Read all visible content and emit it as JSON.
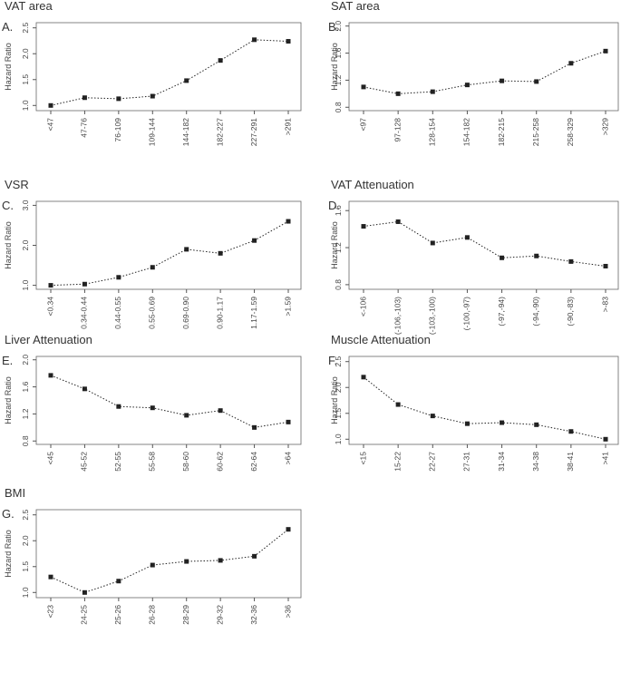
{
  "chart_data": [
    {
      "type": "line",
      "panel_label": "A.",
      "title": "VAT area",
      "ylabel": "Hazard Ratio",
      "categories": [
        "<47",
        "47-76",
        "76-109",
        "109-144",
        "144-182",
        "182-227",
        "227-291",
        ">291"
      ],
      "values": [
        1.0,
        1.15,
        1.13,
        1.18,
        1.48,
        1.87,
        2.27,
        2.24
      ],
      "ylim": [
        0.9,
        2.6
      ],
      "yticks": [
        {
          "value": 1,
          "label": "1.0"
        },
        1.5,
        {
          "value": 2,
          "label": "2.0"
        },
        2.5
      ],
      "color": "#222222"
    },
    {
      "type": "line",
      "panel_label": "B.",
      "title": "SAT area",
      "ylabel": "Hazard Ratio",
      "categories": [
        "<97",
        "97-128",
        "128-154",
        "154-182",
        "182-215",
        "215-258",
        "258-329",
        ">329"
      ],
      "values": [
        1.1,
        1.0,
        1.03,
        1.13,
        1.19,
        1.18,
        1.45,
        1.63
      ],
      "ylim": [
        0.75,
        2.05
      ],
      "yticks": [
        0.8,
        1.2,
        1.6,
        {
          "value": 2,
          "label": "2.0"
        }
      ],
      "color": "#222222"
    },
    {
      "type": "line",
      "panel_label": "C.",
      "title": "VSR",
      "ylabel": "Hazard Ratio",
      "categories": [
        "<0.34",
        "0.34-0.44",
        "0.44-0.55",
        "0.55-0.69",
        "0.69-0.90",
        "0.90-1.17",
        "1.17-1.59",
        ">1.59"
      ],
      "values": [
        1.0,
        1.03,
        1.2,
        1.45,
        1.9,
        1.8,
        2.12,
        2.6
      ],
      "ylim": [
        0.9,
        3.1
      ],
      "yticks": [
        {
          "value": 1,
          "label": "1.0"
        },
        {
          "value": 2,
          "label": "2.0"
        },
        {
          "value": 3,
          "label": "3.0"
        }
      ],
      "color": "#222222"
    },
    {
      "type": "line",
      "panel_label": "D.",
      "title": "VAT Attenuation",
      "ylabel": "Hazard Ratio",
      "categories": [
        "<-106",
        "(-106,-103)",
        "(-103,-100)",
        "(-100,-97)",
        "(-97,-94)",
        "(-94,-90)",
        "(-90,-83)",
        ">-83"
      ],
      "values": [
        1.43,
        1.48,
        1.25,
        1.31,
        1.09,
        1.11,
        1.05,
        1.0
      ],
      "ylim": [
        0.75,
        1.7
      ],
      "yticks": [
        0.8,
        1.2,
        1.6
      ],
      "color": "#222222"
    },
    {
      "type": "line",
      "panel_label": "E.",
      "title": "Liver Attenuation",
      "ylabel": "Hazard Ratio",
      "categories": [
        "<45",
        "45-52",
        "52-55",
        "55-58",
        "58-60",
        "60-62",
        "62-64",
        ">64"
      ],
      "values": [
        1.77,
        1.57,
        1.31,
        1.29,
        1.18,
        1.25,
        1.0,
        1.08
      ],
      "ylim": [
        0.75,
        2.05
      ],
      "yticks": [
        0.8,
        1.2,
        1.6,
        {
          "value": 2,
          "label": "2.0"
        }
      ],
      "color": "#222222"
    },
    {
      "type": "line",
      "panel_label": "F.",
      "title": "Muscle Attenuation",
      "ylabel": "Hazard Ratio",
      "categories": [
        "<15",
        "15-22",
        "22-27",
        "27-31",
        "31-34",
        "34-38",
        "38-41",
        ">41"
      ],
      "values": [
        2.2,
        1.67,
        1.45,
        1.3,
        1.32,
        1.28,
        1.15,
        1.0
      ],
      "ylim": [
        0.9,
        2.6
      ],
      "yticks": [
        {
          "value": 1,
          "label": "1.0"
        },
        1.5,
        {
          "value": 2,
          "label": "2.0"
        },
        2.5
      ],
      "color": "#222222"
    },
    {
      "type": "line",
      "panel_label": "G.",
      "title": "BMI",
      "ylabel": "Hazard Ratio",
      "categories": [
        "<23",
        "24-25",
        "25-26",
        "26-28",
        "28-29",
        "29-32",
        "32-36",
        ">36"
      ],
      "values": [
        1.3,
        1.0,
        1.22,
        1.53,
        1.6,
        1.62,
        1.7,
        2.22
      ],
      "ylim": [
        0.9,
        2.6
      ],
      "yticks": [
        {
          "value": 1,
          "label": "1.0"
        },
        1.5,
        {
          "value": 2,
          "label": "2.0"
        },
        2.5
      ],
      "color": "#222222"
    }
  ]
}
